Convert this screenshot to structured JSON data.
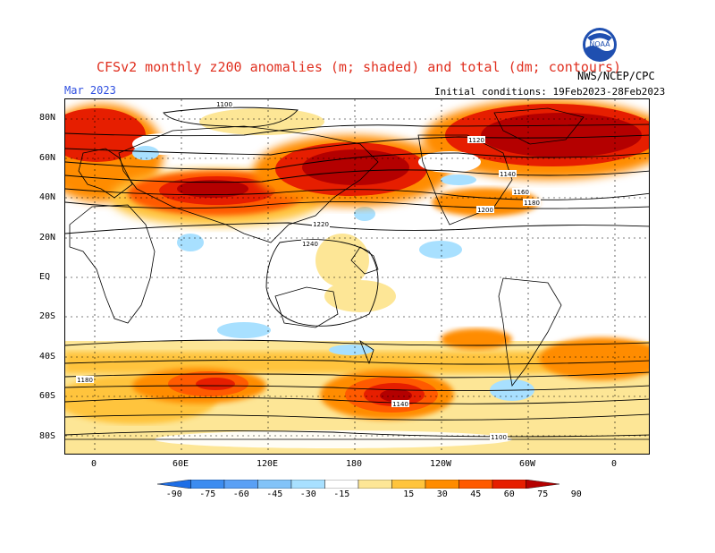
{
  "header": {
    "title": "CFSv2 monthly z200 anomalies (m; shaded) and total (dm; contours)",
    "month": "Mar 2023",
    "initial_conditions": "Initial conditions: 19Feb2023-28Feb2023",
    "agency": "NWS/NCEP/CPC",
    "logo_text": "NOAA"
  },
  "map": {
    "lat_labels": [
      "80N",
      "60N",
      "40N",
      "20N",
      "EQ",
      "20S",
      "40S",
      "60S",
      "80S"
    ],
    "lon_labels": [
      "0",
      "60E",
      "120E",
      "180",
      "120W",
      "60W",
      "0"
    ],
    "contour_labels": [
      "1100",
      "1120",
      "1140",
      "1160",
      "1180",
      "1200",
      "1220",
      "1240"
    ],
    "contour_values_dm": [
      1100,
      1120,
      1140,
      1160,
      1180,
      1200,
      1220,
      1240
    ]
  },
  "colorbar": {
    "labels": [
      "-90",
      "-75",
      "-60",
      "-45",
      "-30",
      "-15",
      "15",
      "30",
      "45",
      "60",
      "75",
      "90"
    ],
    "colors": [
      "#1e6ee6",
      "#3c8cf0",
      "#5aa0f5",
      "#82c3f8",
      "#a8e0ff",
      "#ffffff",
      "#fde696",
      "#ffc43c",
      "#ff8c00",
      "#ff5a00",
      "#e61e00",
      "#b40000"
    ],
    "units": "m"
  }
}
